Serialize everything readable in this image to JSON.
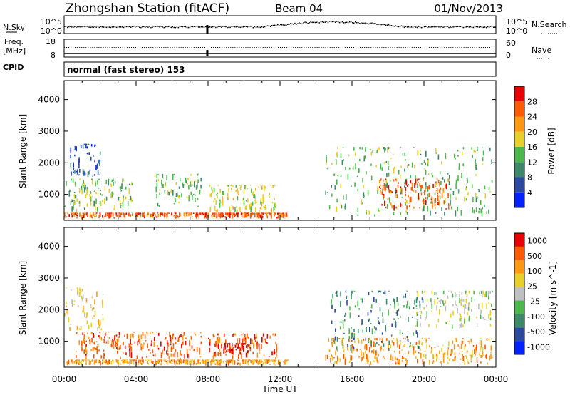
{
  "header": {
    "title": "Zhongshan Station (fitACF)",
    "beam": "Beam 04",
    "date": "01/Nov/2013"
  },
  "noise_panel": {
    "left_label": "N.Sky",
    "left_ticks": [
      "10^5",
      "10^0"
    ],
    "right_label": "N.Search",
    "right_ticks": [
      "10^5",
      "10^0"
    ]
  },
  "freq_panel": {
    "left_label": "Freq.",
    "left_unit": "[MHz]",
    "left_ticks": [
      "18",
      "8"
    ],
    "right_label": "Nave",
    "right_ticks": [
      "60",
      "0"
    ]
  },
  "cpid": {
    "label": "CPID",
    "mode": "normal (fast stereo) 153"
  },
  "x_axis": {
    "label": "Time UT",
    "ticks": [
      "00:00",
      "04:00",
      "08:00",
      "12:00",
      "16:00",
      "20:00",
      "00:00"
    ]
  },
  "colors": {
    "power_scale": [
      "#0022ff",
      "#2c4aa0",
      "#3c8a6a",
      "#4cb84c",
      "#e8d02a",
      "#ff9a10",
      "#ff5a00",
      "#e80000"
    ],
    "velocity_scale": [
      "#e80000",
      "#ff5a00",
      "#ff9a10",
      "#e8d02a",
      "#c0c0c0",
      "#4cb84c",
      "#3c8a6a",
      "#2c4aa0",
      "#0022ff"
    ]
  },
  "chart_data": [
    {
      "type": "heatmap",
      "name": "power",
      "ylabel": "Slant Range [km]",
      "xlabel": "Time UT",
      "yticks": [
        1000,
        2000,
        3000,
        4000
      ],
      "ylim": [
        180,
        4600
      ],
      "xlim_hours": [
        0,
        24
      ],
      "colorbar": {
        "label": "Power [dB]",
        "ticks": [
          "4",
          "8",
          "12",
          "16",
          "20",
          "24",
          "28"
        ],
        "range": [
          0,
          30
        ]
      },
      "regions": [
        {
          "t0": 0.0,
          "t1": 12.4,
          "r0": 230,
          "r1": 420,
          "level": 6
        },
        {
          "t0": 0.0,
          "t1": 3.8,
          "r0": 420,
          "r1": 1500,
          "level": 3
        },
        {
          "t0": 0.3,
          "t1": 2.0,
          "r0": 1500,
          "r1": 2600,
          "level": 1
        },
        {
          "t0": 5.0,
          "t1": 7.6,
          "r0": 600,
          "r1": 1650,
          "level": 3
        },
        {
          "t0": 8.0,
          "t1": 11.8,
          "r0": 420,
          "r1": 1300,
          "level": 4
        },
        {
          "t0": 14.5,
          "t1": 23.8,
          "r0": 300,
          "r1": 2500,
          "level": 3
        },
        {
          "t0": 17.5,
          "t1": 21.5,
          "r0": 500,
          "r1": 1500,
          "level": 6
        }
      ]
    },
    {
      "type": "heatmap",
      "name": "velocity",
      "ylabel": "Slant Range [km]",
      "xlabel": "Time UT",
      "yticks": [
        1000,
        2000,
        3000,
        4000
      ],
      "ylim": [
        180,
        4600
      ],
      "xlim_hours": [
        0,
        24
      ],
      "colorbar": {
        "label": "Velocity [m s^-1]",
        "ticks": [
          "1000",
          "500",
          "100",
          "25",
          "-25",
          "-100",
          "-500",
          "-1000"
        ],
        "range": [
          -1000,
          1000
        ]
      },
      "regions": [
        {
          "t0": 0.0,
          "t1": 12.4,
          "r0": 230,
          "r1": 420,
          "level": 6
        },
        {
          "t0": 0.6,
          "t1": 7.6,
          "r0": 420,
          "r1": 1300,
          "level": 7
        },
        {
          "t0": 0.0,
          "t1": 2.2,
          "r0": 1300,
          "r1": 2700,
          "level": 5
        },
        {
          "t0": 8.0,
          "t1": 11.8,
          "r0": 420,
          "r1": 1250,
          "level": 7
        },
        {
          "t0": 8.7,
          "t1": 10.2,
          "r0": 600,
          "r1": 950,
          "level": 8
        },
        {
          "t0": 14.5,
          "t1": 23.8,
          "r0": 250,
          "r1": 1100,
          "level": 6
        },
        {
          "t0": 14.8,
          "t1": 20.0,
          "r0": 700,
          "r1": 2600,
          "level": 2
        },
        {
          "t0": 19.5,
          "t1": 23.8,
          "r0": 1400,
          "r1": 2600,
          "level": 4
        }
      ]
    }
  ]
}
